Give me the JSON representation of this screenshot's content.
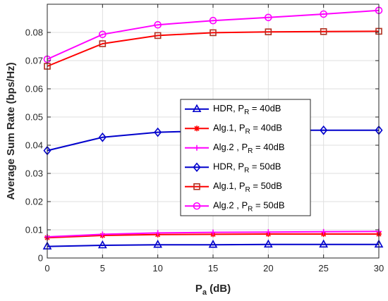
{
  "chart_data": {
    "type": "line",
    "xlabel": {
      "main": "P",
      "sub": "a",
      "rest": " (dB)"
    },
    "ylabel": "Average Sum Rate (bps/Hz)",
    "xlim": [
      0,
      30
    ],
    "ylim": [
      0,
      0.09
    ],
    "xticks": [
      "0",
      "5",
      "10",
      "15",
      "20",
      "25",
      "30"
    ],
    "yticks": [
      "0",
      "0.01",
      "0.02",
      "0.03",
      "0.04",
      "0.05",
      "0.06",
      "0.07",
      "0.08"
    ],
    "grid": true,
    "legend_position": "center-right",
    "x": [
      0,
      5,
      10,
      15,
      20,
      25,
      30
    ],
    "series": [
      {
        "name": "HDR, P_R = 40dB",
        "label_pre": "HDR, P",
        "label_sub": "R",
        "label_post": " = 40dB",
        "color": "#0000cc",
        "marker": "triangle",
        "values": [
          0.0041,
          0.0045,
          0.0047,
          0.0047,
          0.0048,
          0.0048,
          0.0048
        ]
      },
      {
        "name": "Alg.1, P_R = 40dB",
        "label_pre": "Alg.1, P",
        "label_sub": "R",
        "label_post": " = 40dB",
        "color": "#ff0000",
        "marker": "asterisk",
        "values": [
          0.0072,
          0.008,
          0.0083,
          0.0084,
          0.0085,
          0.0085,
          0.0085
        ]
      },
      {
        "name": "Alg.2 , P_R = 40dB",
        "label_pre": "Alg.2 , P",
        "label_sub": "R",
        "label_post": " = 40dB",
        "color": "#ff00ff",
        "marker": "plus",
        "values": [
          0.0075,
          0.0084,
          0.0089,
          0.0091,
          0.0092,
          0.0093,
          0.0094
        ]
      },
      {
        "name": "HDR, P_R = 50dB",
        "label_pre": "HDR, P",
        "label_sub": "R",
        "label_post": " = 50dB",
        "color": "#0000cc",
        "marker": "diamond",
        "values": [
          0.0381,
          0.0428,
          0.0446,
          0.0451,
          0.0453,
          0.0453,
          0.0453
        ]
      },
      {
        "name": "Alg.1, P_R = 50dB",
        "label_pre": "Alg.1, P",
        "label_sub": "R",
        "label_post": " = 50dB",
        "color": "#ff0000",
        "marker": "square",
        "marker_edge": "#b03020",
        "values": [
          0.068,
          0.076,
          0.0789,
          0.0799,
          0.0802,
          0.0803,
          0.0804
        ]
      },
      {
        "name": "Alg.2 , P_R = 50dB",
        "label_pre": "Alg.2 , P",
        "label_sub": "R",
        "label_post": " = 50dB",
        "color": "#ff00ff",
        "marker": "circle",
        "values": [
          0.0705,
          0.0793,
          0.0827,
          0.0842,
          0.0853,
          0.0865,
          0.0878
        ]
      }
    ]
  }
}
